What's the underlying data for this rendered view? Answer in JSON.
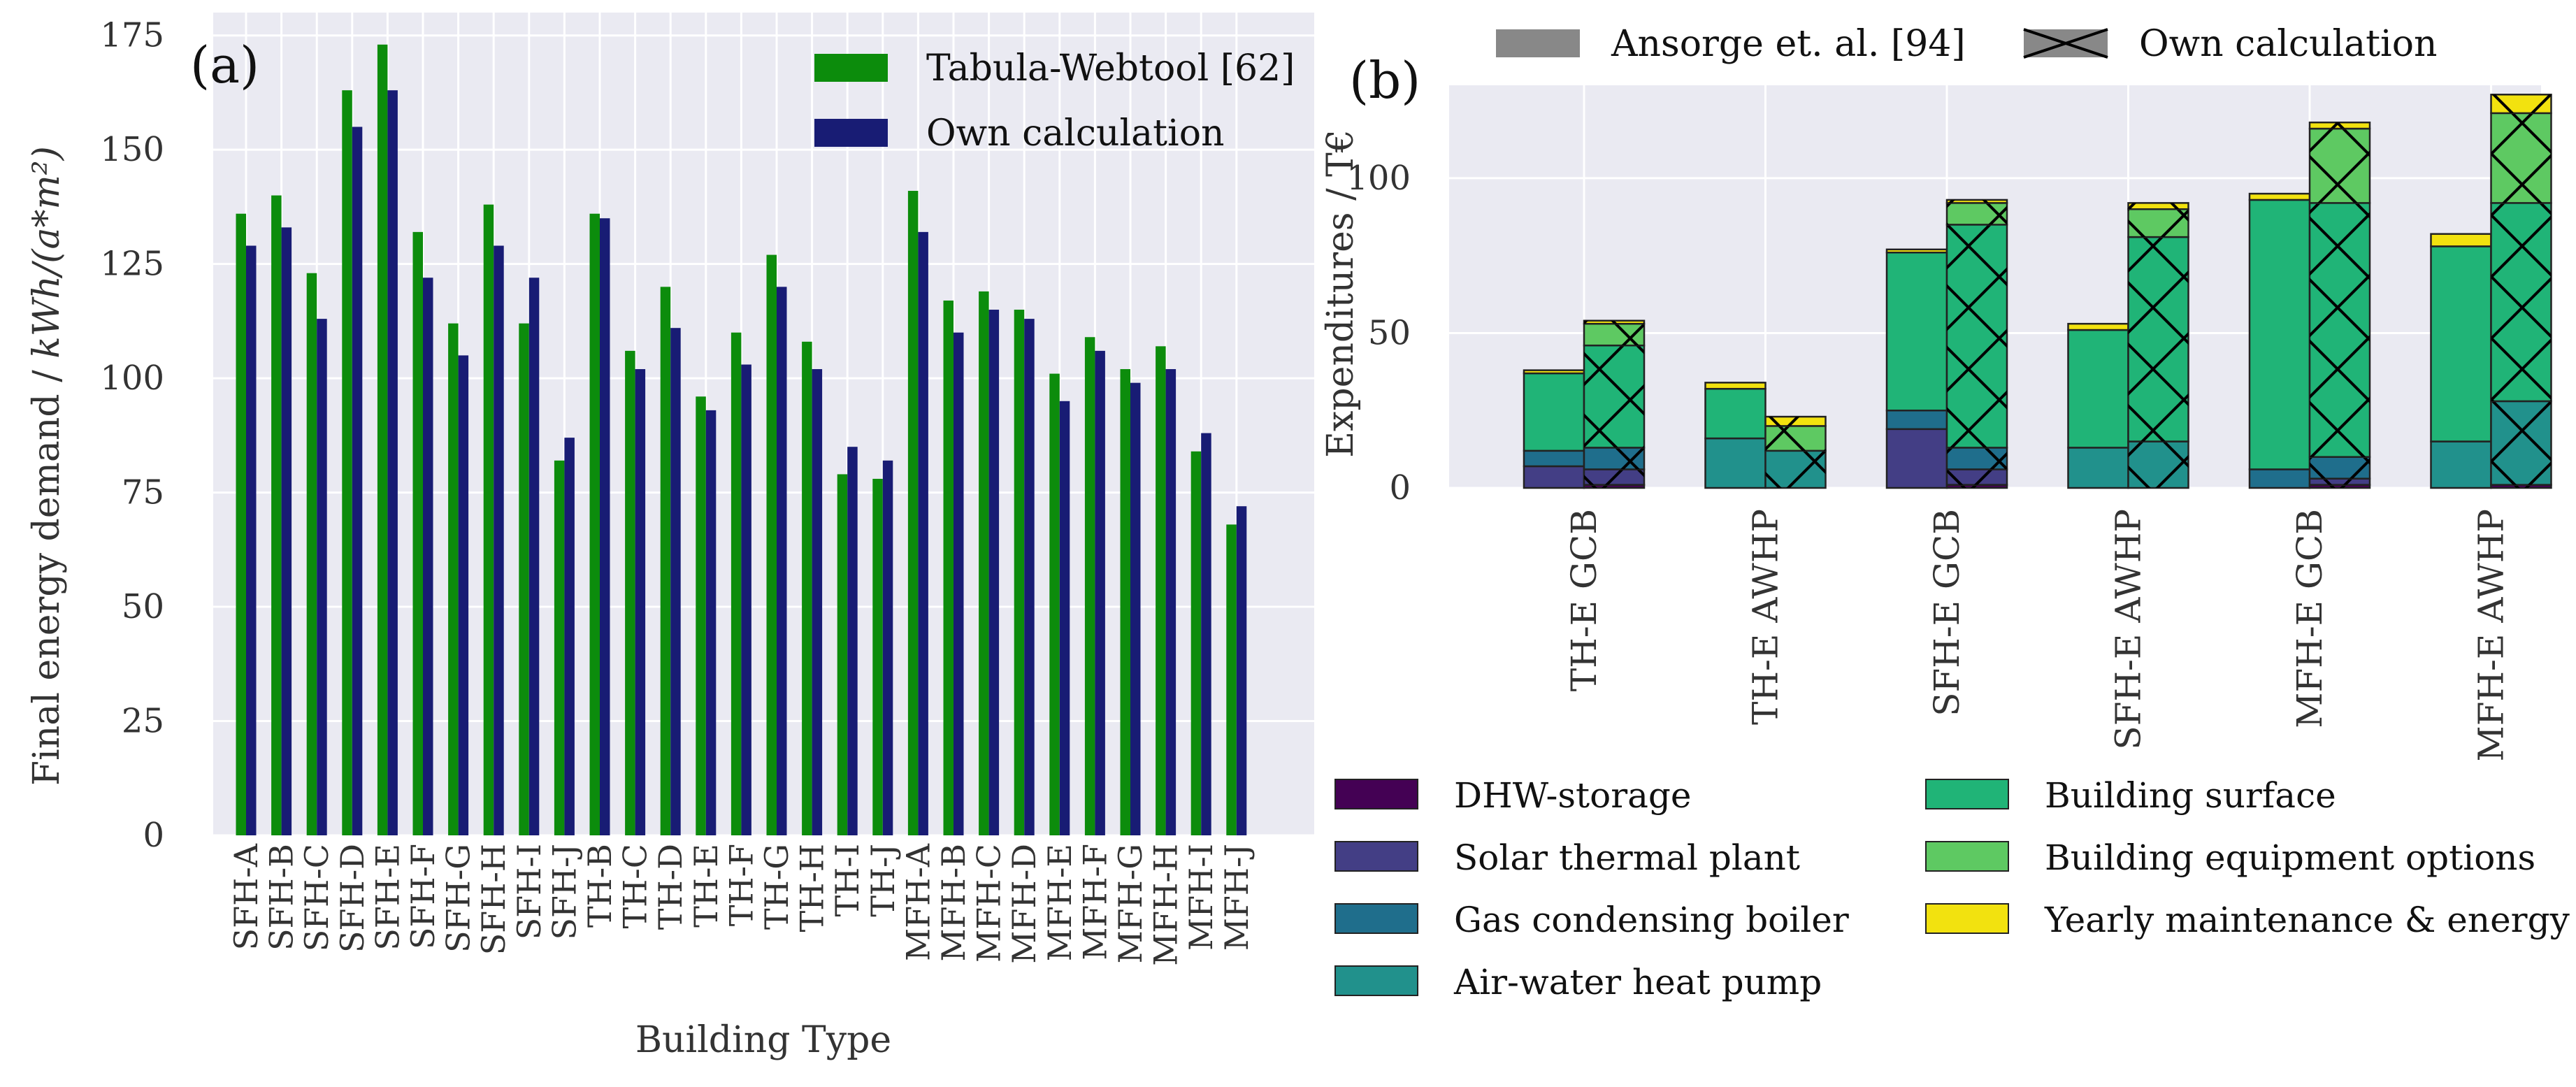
{
  "chart_data": [
    {
      "panel": "a",
      "type": "bar",
      "panel_label": "(a)",
      "xlabel": "Building Type",
      "ylabel_prefix": "Final energy demand / ",
      "ylabel_unit": "kWh/(a*m²)",
      "ylim": [
        0,
        180
      ],
      "yticks": [
        0,
        25,
        50,
        75,
        100,
        125,
        150,
        175
      ],
      "grid": true,
      "legend": "top-right",
      "categories": [
        "SFH-A",
        "SFH-B",
        "SFH-C",
        "SFH-D",
        "SFH-E",
        "SFH-F",
        "SFH-G",
        "SFH-H",
        "SFH-I",
        "SFH-J",
        "TH-B",
        "TH-C",
        "TH-D",
        "TH-E",
        "TH-F",
        "TH-G",
        "TH-H",
        "TH-I",
        "TH-J",
        "MFH-A",
        "MFH-B",
        "MFH-C",
        "MFH-D",
        "MFH-E",
        "MFH-F",
        "MFH-G",
        "MFH-H",
        "MFH-I",
        "MFH-J"
      ],
      "series": [
        {
          "name": "Tabula-Webtool [62]",
          "color": "#0c8c0c",
          "values": [
            136,
            140,
            123,
            163,
            173,
            132,
            112,
            138,
            112,
            82,
            136,
            106,
            120,
            96,
            110,
            127,
            108,
            79,
            78,
            141,
            117,
            119,
            115,
            101,
            109,
            102,
            107,
            84,
            68
          ]
        },
        {
          "name": "Own calculation",
          "color": "#181c74",
          "values": [
            129,
            133,
            113,
            155,
            163,
            122,
            105,
            129,
            122,
            87,
            135,
            102,
            111,
            93,
            103,
            120,
            102,
            85,
            82,
            132,
            110,
            115,
            113,
            95,
            106,
            99,
            102,
            88,
            72
          ]
        }
      ]
    },
    {
      "panel": "b",
      "type": "bar",
      "subtype": "stacked",
      "panel_label": "(b)",
      "ylabel": "Expenditures / T€",
      "ylim": [
        0,
        130
      ],
      "yticks": [
        0,
        50,
        100
      ],
      "grid": true,
      "categories": [
        "TH-E GCB",
        "TH-E AWHP",
        "SFH-E GCB",
        "SFH-E AWHP",
        "MFH-E GCB",
        "MFH-E AWHP"
      ],
      "sources": [
        {
          "name": "Ansorge et. al. [94]",
          "pattern": "solid"
        },
        {
          "name": "Own calculation",
          "pattern": "cross-hatched"
        }
      ],
      "components": [
        {
          "name": "DHW-storage",
          "color": "#440154"
        },
        {
          "name": "Solar thermal plant",
          "color": "#433e85"
        },
        {
          "name": "Gas condensing boiler",
          "color": "#1f6e8c"
        },
        {
          "name": "Air-water heat pump",
          "color": "#21918c"
        },
        {
          "name": "Building surface",
          "color": "#20b477"
        },
        {
          "name": "Building equipment options",
          "color": "#5ec962"
        },
        {
          "name": "Yearly maintenance & energy",
          "color": "#f2e20f"
        }
      ],
      "ansorge": [
        [
          0,
          7,
          5,
          0,
          25,
          0,
          1
        ],
        [
          0,
          0,
          0,
          16,
          16,
          0,
          2
        ],
        [
          0,
          19,
          6,
          0,
          51,
          0,
          1
        ],
        [
          0,
          0,
          0,
          13,
          38,
          0,
          2
        ],
        [
          0,
          0,
          6,
          0,
          87,
          0,
          2
        ],
        [
          0,
          0,
          0,
          15,
          63,
          0,
          4
        ]
      ],
      "own": [
        [
          1,
          5,
          7,
          0,
          33,
          7,
          1
        ],
        [
          0,
          0,
          0,
          12,
          0,
          8,
          3
        ],
        [
          1,
          5,
          7,
          0,
          72,
          7,
          1
        ],
        [
          0,
          0,
          0,
          15,
          66,
          9,
          2
        ],
        [
          1,
          2,
          7,
          0,
          82,
          24,
          2
        ],
        [
          1,
          0,
          0,
          27,
          64,
          29,
          6
        ]
      ]
    }
  ]
}
